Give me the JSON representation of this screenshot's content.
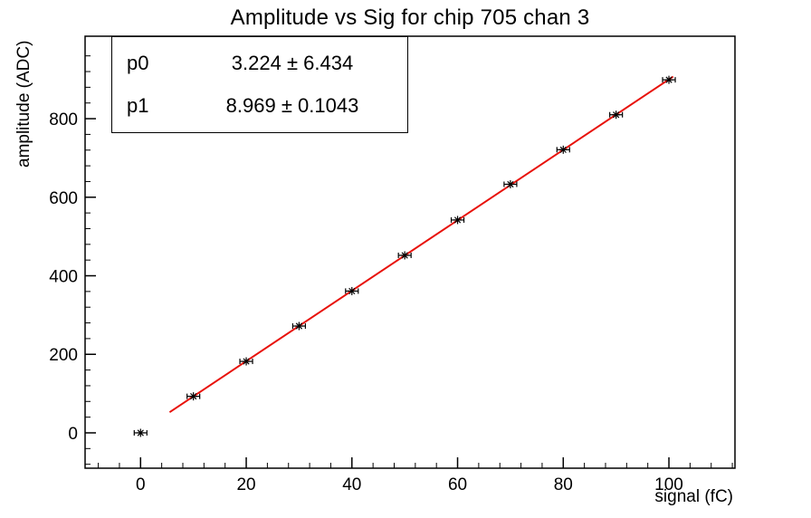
{
  "title": "Amplitude vs Sig for chip 705 chan 3",
  "stats": {
    "rows": [
      {
        "name": "p0",
        "value": "3.224 ± 6.434"
      },
      {
        "name": "p1",
        "value": "8.969 ± 0.1043"
      }
    ]
  },
  "axes": {
    "x_title": "signal (fC)",
    "y_title": "amplitude (ADC)"
  },
  "chart_data": {
    "type": "scatter",
    "title": "Amplitude vs Sig for chip 705 chan 3",
    "xlabel": "signal (fC)",
    "ylabel": "amplitude (ADC)",
    "xlim": [
      -10.5,
      112.5
    ],
    "ylim": [
      -90,
      1010
    ],
    "x_ticks": [
      0,
      20,
      40,
      60,
      80,
      100
    ],
    "y_ticks": [
      0,
      200,
      400,
      600,
      800
    ],
    "x_minor_step": 4,
    "y_minor_step": 40,
    "grid": false,
    "points": {
      "marker": "star",
      "color": "#000000",
      "x": [
        0,
        10,
        20,
        30,
        40,
        50,
        60,
        70,
        80,
        90,
        100
      ],
      "y": [
        0,
        93,
        182,
        272,
        361,
        452,
        542,
        633,
        721,
        810,
        899
      ]
    },
    "fit": {
      "p0": 3.224,
      "p0_err": 6.434,
      "p1": 8.969,
      "p1_err": 0.1043,
      "x_range": [
        5.5,
        100.8
      ],
      "color": "#e8110a"
    },
    "legend_position": "top-left-stats-box"
  }
}
